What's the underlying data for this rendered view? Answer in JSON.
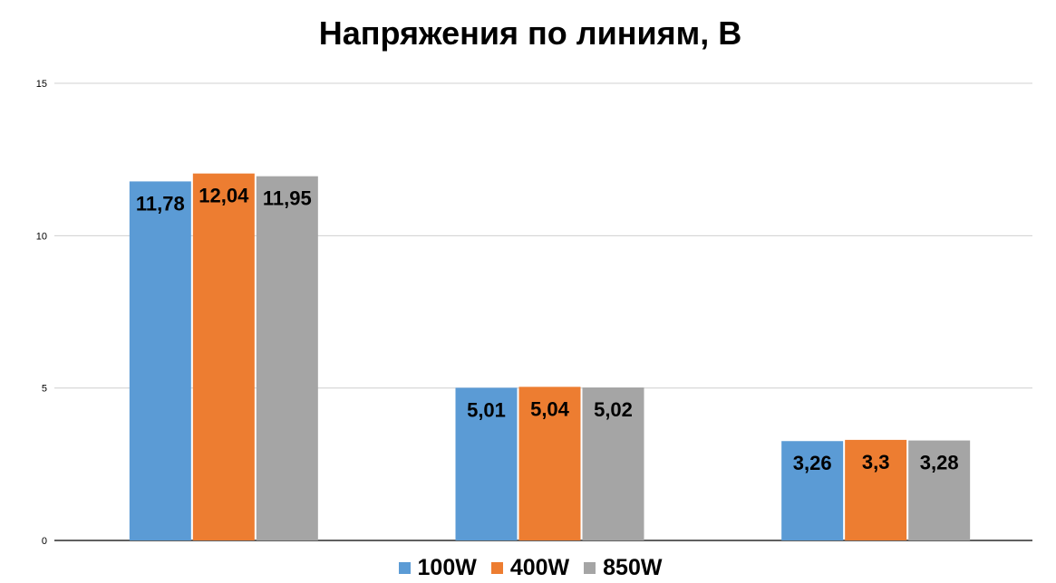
{
  "chart_data": {
    "type": "bar",
    "title": "Напряжения по линиям, В",
    "categories": [
      "",
      "",
      ""
    ],
    "series": [
      {
        "name": "100W",
        "color": "#5b9bd5",
        "values": [
          11.78,
          5.01,
          3.26
        ],
        "labels": [
          "11,78",
          "5,01",
          "3,26"
        ]
      },
      {
        "name": "400W",
        "color": "#ed7d31",
        "values": [
          12.04,
          5.04,
          3.3
        ],
        "labels": [
          "12,04",
          "5,04",
          "3,3"
        ]
      },
      {
        "name": "850W",
        "color": "#a5a5a5",
        "values": [
          11.95,
          5.02,
          3.28
        ],
        "labels": [
          "11,95",
          "5,02",
          "3,28"
        ]
      }
    ],
    "ylim": [
      0,
      15
    ],
    "yticks": [
      0,
      5,
      10,
      15
    ],
    "grid": true,
    "legend_position": "bottom"
  }
}
